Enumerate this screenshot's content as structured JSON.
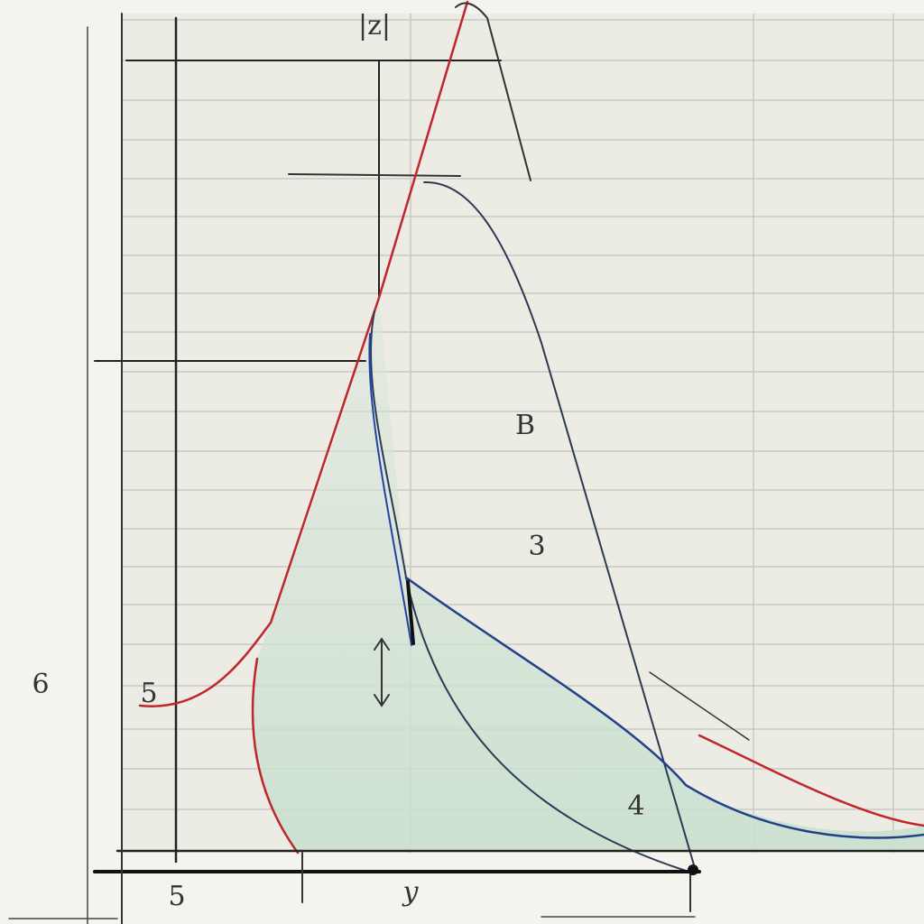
{
  "labels": {
    "top": "|z|",
    "bottom_left": "5",
    "bottom_mid": "y",
    "peak": "B",
    "mid_mark": "3",
    "low_mark": "4",
    "left_upper": "6",
    "left_lower": "5"
  }
}
